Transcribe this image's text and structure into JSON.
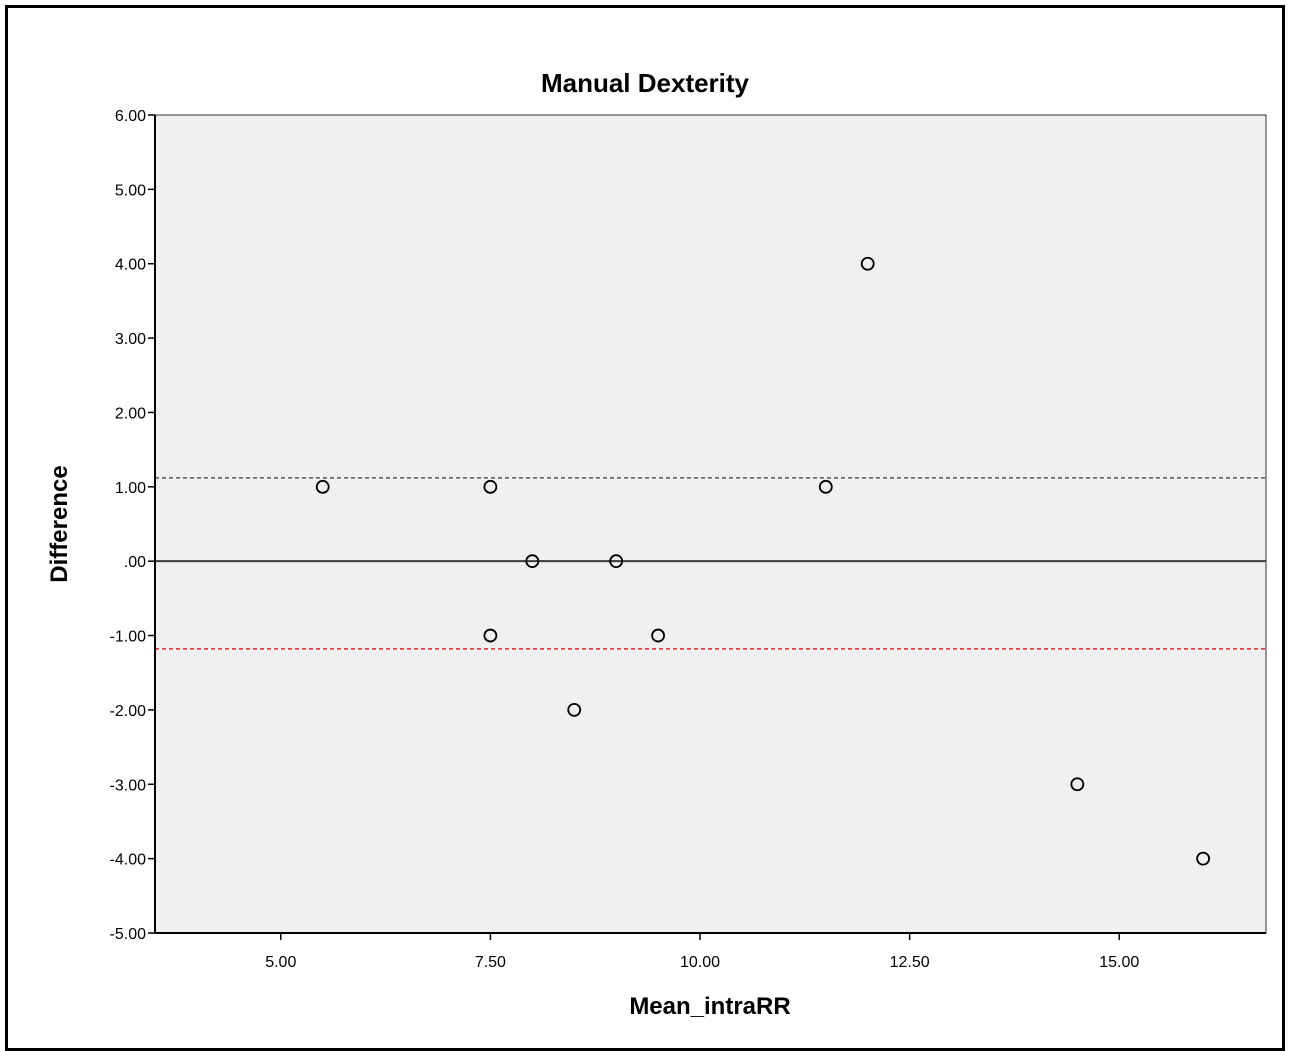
{
  "chart_data": {
    "type": "scatter",
    "title": "Manual Dexterity",
    "xlabel": "Mean_intraRR",
    "ylabel": "Difference",
    "xlim": [
      3.5,
      16.75
    ],
    "ylim": [
      -5,
      6
    ],
    "x_ticks": [
      5,
      7.5,
      10,
      12.5,
      15
    ],
    "x_tick_labels": [
      "5.00",
      "7.50",
      "10.00",
      "12.50",
      "15.00"
    ],
    "y_ticks": [
      6,
      5,
      4,
      3,
      2,
      1,
      0,
      -1,
      -2,
      -3,
      -4,
      -5
    ],
    "y_tick_labels": [
      "6.00",
      "5.00",
      "4.00",
      "3.00",
      "2.00",
      "1.00",
      ".00",
      "-1.00",
      "-2.00",
      "-3.00",
      "-4.00",
      "-5.00"
    ],
    "points": [
      {
        "x": 5.5,
        "y": 1
      },
      {
        "x": 7.5,
        "y": 1
      },
      {
        "x": 11.5,
        "y": 1
      },
      {
        "x": 12.0,
        "y": 4
      },
      {
        "x": 8.0,
        "y": 0
      },
      {
        "x": 9.0,
        "y": 0
      },
      {
        "x": 7.5,
        "y": -1
      },
      {
        "x": 9.5,
        "y": -1
      },
      {
        "x": 8.5,
        "y": -2
      },
      {
        "x": 14.5,
        "y": -3
      },
      {
        "x": 16.0,
        "y": -4
      }
    ],
    "reference_lines": [
      {
        "y": 0,
        "style": "solid",
        "color": "#3a3a3a"
      },
      {
        "y": 1.12,
        "style": "dashed",
        "color": "#555555"
      },
      {
        "y": -1.18,
        "style": "dashed",
        "color": "#e8262a"
      }
    ],
    "plot_background": "#f0f0f0",
    "grid": false,
    "legend": "none"
  }
}
